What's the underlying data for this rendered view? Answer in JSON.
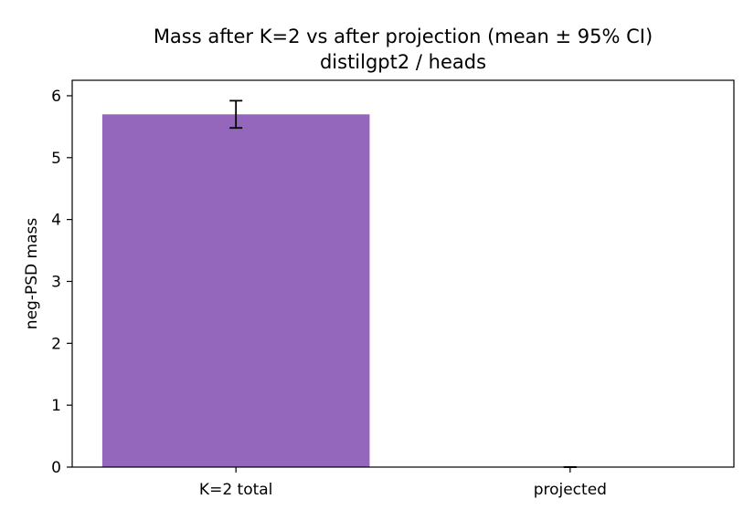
{
  "chart_data": {
    "type": "bar",
    "title": "Mass after K=2 vs after projection (mean ± 95% CI)",
    "subtitle": "distilgpt2 / heads",
    "xlabel": "",
    "ylabel": "neg-PSD mass",
    "categories": [
      "K=2 total",
      "projected"
    ],
    "values": [
      5.7,
      0.0
    ],
    "error": [
      0.22,
      0.0
    ],
    "ylim": [
      0,
      6.25
    ],
    "yticks": [
      0,
      1,
      2,
      3,
      4,
      5,
      6
    ],
    "ytick_labels": [
      "0",
      "1",
      "2",
      "3",
      "4",
      "5",
      "6"
    ],
    "grid": false,
    "colors": {
      "bar": "#9467bd",
      "error": "#000000",
      "axis": "#000000"
    }
  }
}
